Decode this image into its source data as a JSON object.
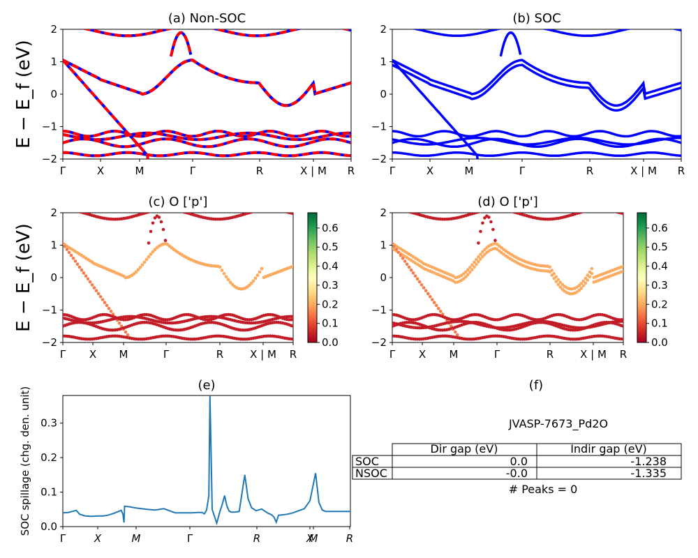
{
  "chart_data": [
    {
      "id": "a",
      "type": "line",
      "title": "(a) Non-SOC",
      "ylabel": "E − E_f (eV)",
      "ylim": [
        -2,
        2
      ],
      "yticks": [
        "2",
        "1",
        "0",
        "−1",
        "−2"
      ],
      "xticks": [
        "Γ",
        "X",
        "M",
        "Γ",
        "R",
        "X | M",
        "R"
      ],
      "colors": [
        "#ff0000",
        "#0000ff"
      ],
      "series_description": "band structure, dashed red/blue overlay"
    },
    {
      "id": "b",
      "type": "line",
      "title": "(b) SOC",
      "ylim": [
        -2,
        2
      ],
      "yticks": [
        "2",
        "1",
        "0",
        "−1",
        "−2"
      ],
      "xticks": [
        "Γ",
        "X",
        "M",
        "Γ",
        "R",
        "X | M",
        "R"
      ],
      "colors": [
        "#0000ff"
      ]
    },
    {
      "id": "c",
      "type": "scatter",
      "title": "(c)  O ['p']",
      "ylabel": "E − E_f (eV)",
      "ylim": [
        -2,
        2
      ],
      "yticks": [
        "2",
        "1",
        "0",
        "−1",
        "−2"
      ],
      "xticks": [
        "Γ",
        "X",
        "M",
        "Γ",
        "R",
        "X | M",
        "R"
      ],
      "colorbar": {
        "ticks": [
          "0.6",
          "0.5",
          "0.4",
          "0.3",
          "0.2",
          "0.1",
          "0.0"
        ],
        "range": [
          0,
          0.68
        ],
        "colormap": "RdYlGn"
      }
    },
    {
      "id": "d",
      "type": "scatter",
      "title": "(d) O ['p']",
      "ylim": [
        -2,
        2
      ],
      "yticks": [
        "2",
        "1",
        "0",
        "−1",
        "−2"
      ],
      "xticks": [
        "Γ",
        "X",
        "M",
        "Γ",
        "R",
        "X | M",
        "R"
      ],
      "colorbar": {
        "ticks": [
          "0.6",
          "0.5",
          "0.4",
          "0.3",
          "0.2",
          "0.1",
          "0.0"
        ],
        "range": [
          0,
          0.68
        ],
        "colormap": "RdYlGn"
      }
    },
    {
      "id": "e",
      "type": "line",
      "title": "(e)",
      "ylabel": "SOC spillage (chg. den. unit)",
      "ylim": [
        0,
        0.38
      ],
      "yticks": [
        "0.3",
        "0.2",
        "0.1",
        "0.0"
      ],
      "xticks": [
        "Γ",
        "X",
        "M",
        "Γ",
        "R",
        "X",
        "M",
        "R"
      ],
      "color": "#1f77b4",
      "x": [
        0,
        0.5,
        1.2,
        1.5,
        2.0,
        2.5,
        3.2,
        3.6,
        4.0,
        4.5,
        5.2,
        5.35,
        5.45,
        5.5,
        6.0,
        6.5,
        7.5,
        8.2,
        9.0,
        10.0,
        11.0,
        11.5,
        12.0,
        12.4,
        12.6,
        12.8,
        13.0,
        13.1,
        13.3,
        13.7,
        14.0,
        14.2,
        14.4,
        14.6,
        14.8,
        15.0,
        15.3,
        15.7,
        16.2,
        16.5,
        16.8,
        17.2,
        17.7,
        18.2,
        18.6,
        18.8,
        19.0,
        19.2,
        19.5,
        20.0,
        20.5,
        21.0,
        21.5,
        22.0,
        22.5,
        22.8,
        23.1,
        23.4,
        23.7,
        24.0,
        24.3,
        24.6,
        25.0,
        25.3,
        25.6
      ],
      "values": [
        0.04,
        0.041,
        0.047,
        0.036,
        0.031,
        0.03,
        0.031,
        0.031,
        0.033,
        0.038,
        0.047,
        0.036,
        0.012,
        0.059,
        0.057,
        0.054,
        0.05,
        0.048,
        0.052,
        0.04,
        0.04,
        0.04,
        0.041,
        0.041,
        0.037,
        0.048,
        0.09,
        0.385,
        0.05,
        0.01,
        0.045,
        0.065,
        0.09,
        0.06,
        0.045,
        0.042,
        0.042,
        0.044,
        0.15,
        0.08,
        0.055,
        0.046,
        0.051,
        0.04,
        0.034,
        0.027,
        0.013,
        0.033,
        0.034,
        0.036,
        0.04,
        0.046,
        0.052,
        0.075,
        0.155,
        0.07,
        0.048,
        0.044,
        0.044,
        0.044,
        0.044,
        0.044,
        0.044,
        0.044,
        0.044
      ]
    },
    {
      "id": "f",
      "type": "table",
      "title": "(f)",
      "subtitle": "JVASP-7673_Pd2O",
      "columns": [
        "Dir gap (eV)",
        "Indir gap (eV)"
      ],
      "rows": [
        {
          "label": "SOC",
          "values": [
            "0.0",
            "-1.238"
          ]
        },
        {
          "label": "NSOC",
          "values": [
            "-0.0",
            "-1.335"
          ]
        }
      ],
      "footer": "# Peaks = 0"
    }
  ]
}
